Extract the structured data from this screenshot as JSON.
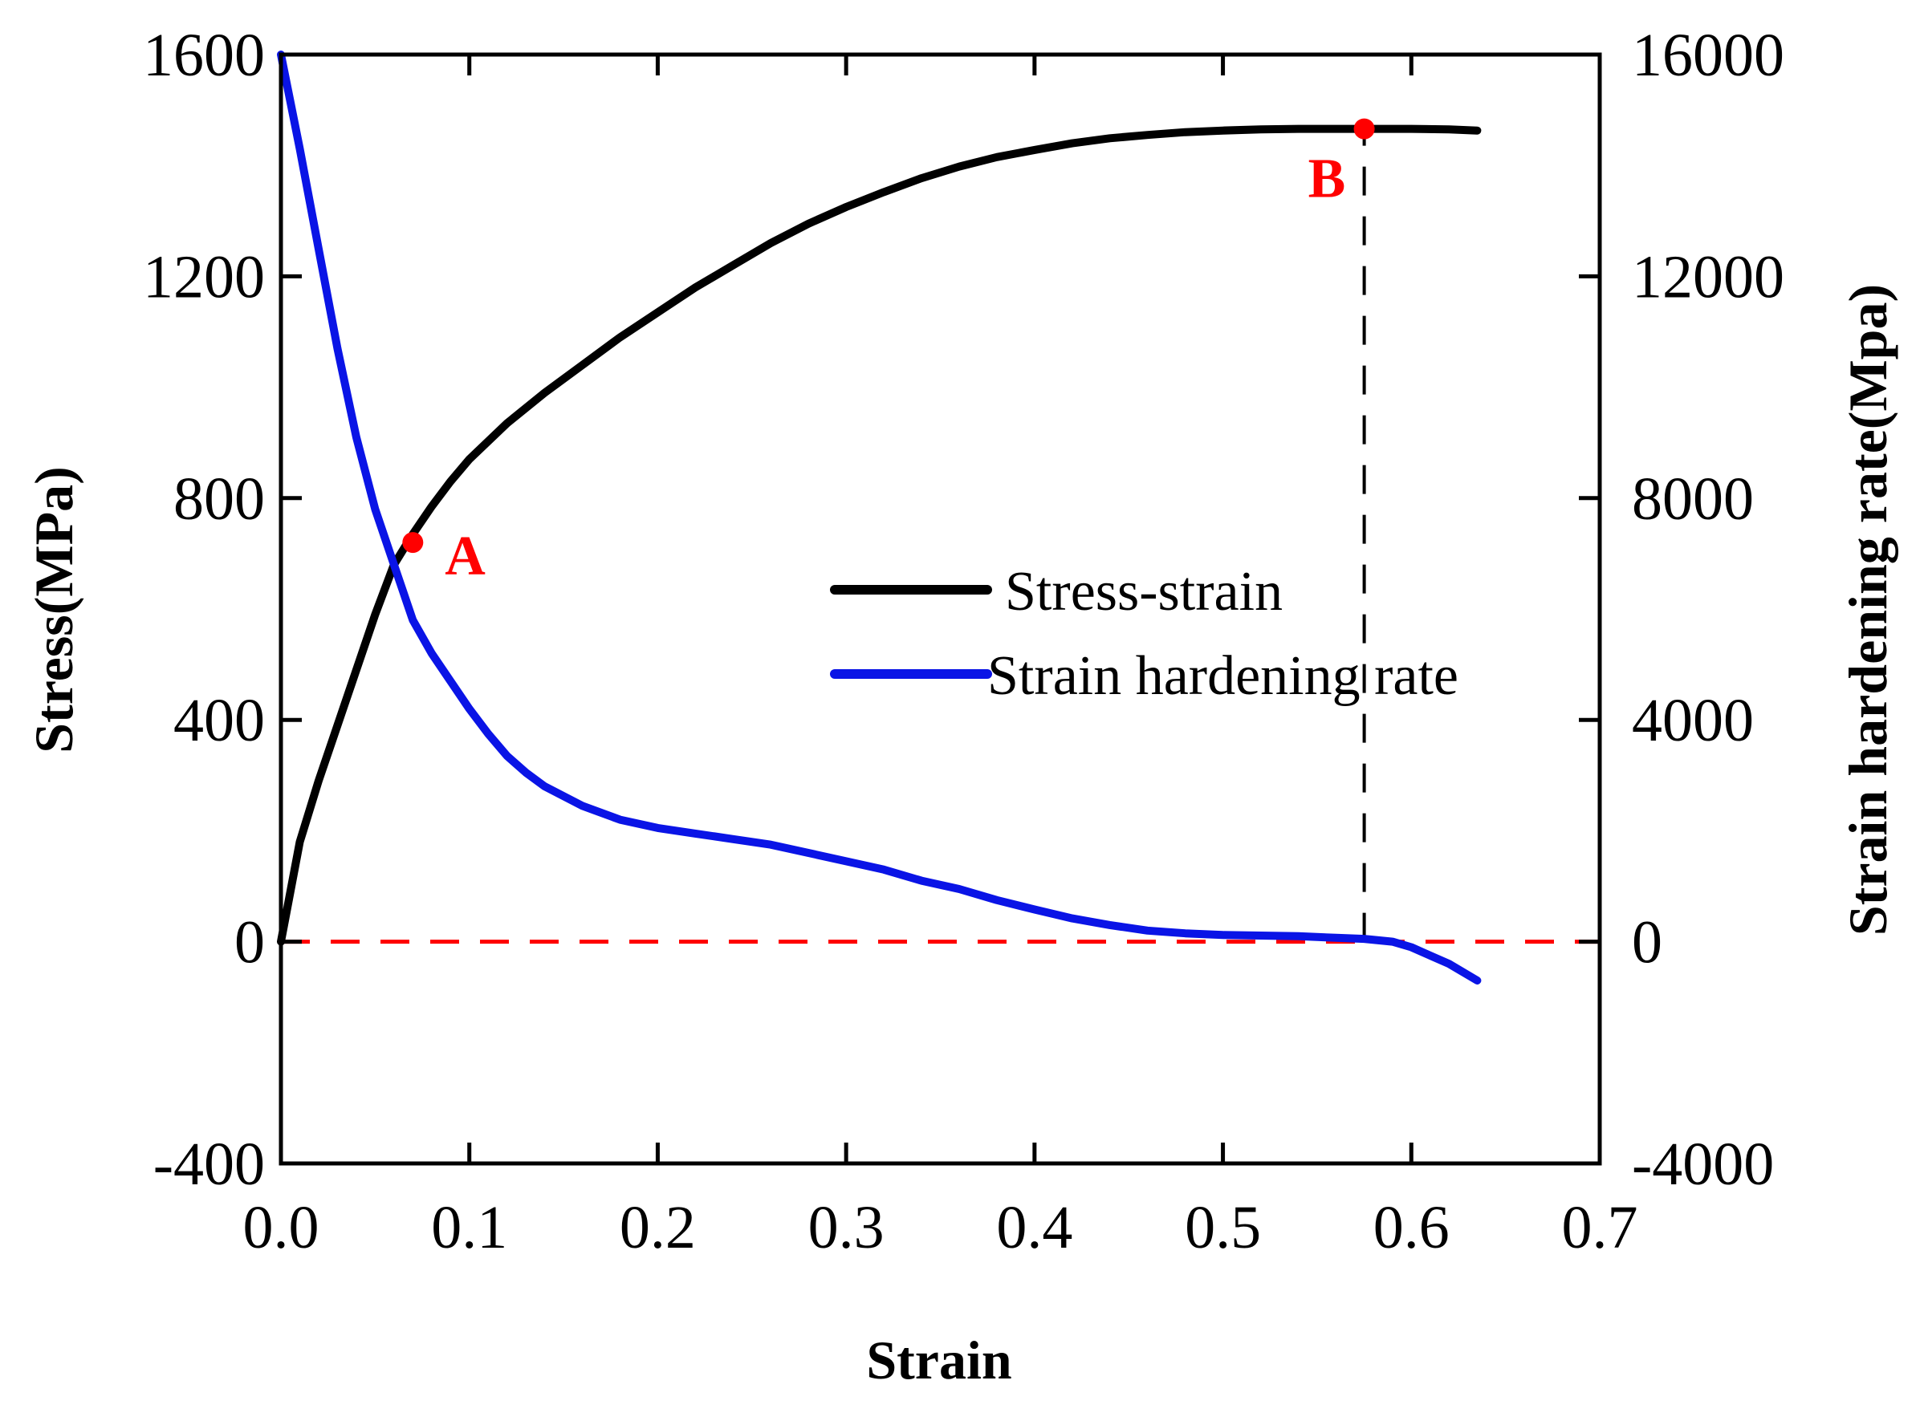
{
  "chart_data": {
    "type": "line",
    "title": "",
    "xlabel": "Strain",
    "ylabel": "Stress(MPa)",
    "y2label": "Strain hardening rate(Mpa)",
    "xlim": [
      0,
      0.7
    ],
    "ylim": [
      -400,
      1600
    ],
    "y2lim": [
      -4000,
      16000
    ],
    "x_ticks": [
      0.0,
      0.1,
      0.2,
      0.3,
      0.4,
      0.5,
      0.6,
      0.7
    ],
    "x_tick_labels": [
      "0.0",
      "0.1",
      "0.2",
      "0.3",
      "0.4",
      "0.5",
      "0.6",
      "0.7"
    ],
    "y_ticks": [
      -400,
      0,
      400,
      800,
      1200,
      1600
    ],
    "y_tick_labels": [
      "-400",
      "0",
      "400",
      "800",
      "1200",
      "1600"
    ],
    "y2_ticks": [
      -4000,
      0,
      4000,
      8000,
      12000,
      16000
    ],
    "y2_tick_labels": [
      "-4000",
      "0",
      "4000",
      "8000",
      "12000",
      "16000"
    ],
    "legend_position": "center-right",
    "series": [
      {
        "name": "Stress-strain",
        "axis": "left",
        "color": "#000000",
        "x": [
          0,
          0.01,
          0.02,
          0.03,
          0.04,
          0.05,
          0.06,
          0.07,
          0.08,
          0.09,
          0.1,
          0.12,
          0.14,
          0.16,
          0.18,
          0.2,
          0.22,
          0.24,
          0.26,
          0.28,
          0.3,
          0.32,
          0.34,
          0.36,
          0.38,
          0.4,
          0.42,
          0.44,
          0.46,
          0.48,
          0.5,
          0.52,
          0.54,
          0.56,
          0.575,
          0.59,
          0.6,
          0.62,
          0.635
        ],
        "values": [
          0,
          180,
          290,
          390,
          490,
          590,
          680,
          735,
          785,
          830,
          870,
          935,
          990,
          1040,
          1090,
          1135,
          1180,
          1220,
          1260,
          1295,
          1325,
          1352,
          1377,
          1398,
          1415,
          1428,
          1440,
          1449,
          1455,
          1460,
          1463,
          1465,
          1466,
          1466,
          1466,
          1466,
          1466,
          1465,
          1463
        ]
      },
      {
        "name": "Strain hardening rate",
        "axis": "right",
        "color": "#0a14e6",
        "x": [
          0,
          0.01,
          0.02,
          0.03,
          0.04,
          0.05,
          0.06,
          0.07,
          0.08,
          0.09,
          0.1,
          0.11,
          0.12,
          0.13,
          0.14,
          0.16,
          0.18,
          0.2,
          0.22,
          0.24,
          0.26,
          0.28,
          0.3,
          0.32,
          0.34,
          0.36,
          0.38,
          0.4,
          0.42,
          0.44,
          0.46,
          0.48,
          0.5,
          0.52,
          0.54,
          0.56,
          0.575,
          0.59,
          0.6,
          0.61,
          0.62,
          0.635
        ],
        "values": [
          16000,
          14300,
          12500,
          10700,
          9100,
          7800,
          6800,
          5800,
          5200,
          4700,
          4200,
          3750,
          3350,
          3050,
          2800,
          2450,
          2200,
          2050,
          1950,
          1850,
          1750,
          1600,
          1450,
          1300,
          1100,
          950,
          750,
          580,
          420,
          300,
          200,
          150,
          120,
          110,
          100,
          70,
          50,
          0,
          -100,
          -250,
          -400,
          -700
        ]
      }
    ],
    "annotations": [
      {
        "label": "A",
        "x": 0.07,
        "y": 720,
        "color": "#ff0000"
      },
      {
        "label": "B",
        "x": 0.575,
        "y": 1466,
        "color": "#ff0000"
      }
    ],
    "reference_lines": [
      {
        "type": "horizontal",
        "y": 0,
        "style": "dashed",
        "color": "#ff0000"
      },
      {
        "type": "vertical",
        "x": 0.575,
        "from_y": 0,
        "to_y": 1466,
        "style": "dashed",
        "color": "#000000"
      }
    ]
  }
}
